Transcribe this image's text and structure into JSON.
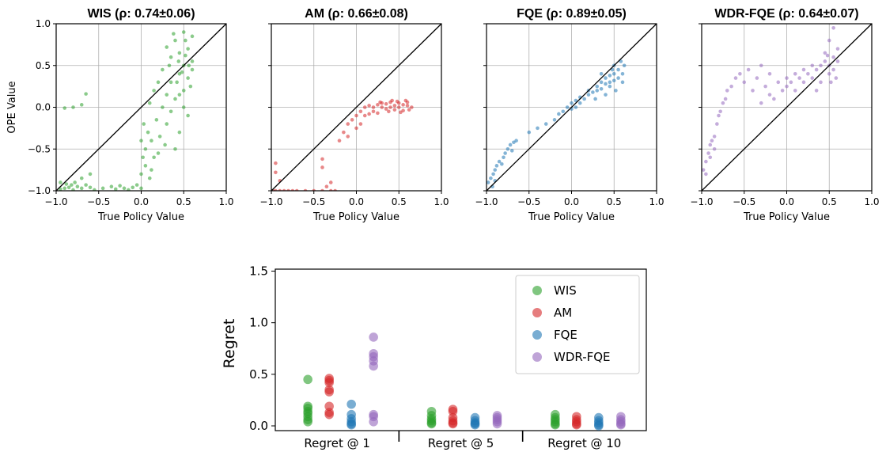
{
  "chart_data": [
    {
      "type": "scatter",
      "title": "WIS (ρ: 0.74±0.06)",
      "xlabel": "True Policy Value",
      "ylabel": "OPE Value",
      "xlim": [
        -1.0,
        1.0
      ],
      "ylim": [
        -1.0,
        1.0
      ],
      "xticks": [
        "−1.0",
        "−0.5",
        "0.0",
        "0.5",
        "1.0"
      ],
      "yticks": [
        "−1.0",
        "−0.5",
        "0.0",
        "0.5",
        "1.0"
      ],
      "grid": true,
      "color": "#2ca02c",
      "points": [
        [
          -0.95,
          -0.98
        ],
        [
          -0.9,
          -0.97
        ],
        [
          -0.85,
          -0.96
        ],
        [
          -0.8,
          -0.99
        ],
        [
          -0.75,
          -0.95
        ],
        [
          -0.7,
          -0.97
        ],
        [
          -0.65,
          -0.93
        ],
        [
          -0.88,
          -0.92
        ],
        [
          -0.78,
          -0.9
        ],
        [
          -0.6,
          -0.96
        ],
        [
          -0.55,
          -0.99
        ],
        [
          -0.45,
          -0.97
        ],
        [
          -0.35,
          -0.95
        ],
        [
          -0.3,
          -0.98
        ],
        [
          -0.25,
          -0.94
        ],
        [
          -0.2,
          -0.97
        ],
        [
          -0.15,
          -0.99
        ],
        [
          -0.1,
          -0.96
        ],
        [
          -0.05,
          -0.93
        ],
        [
          0.0,
          -0.97
        ],
        [
          -0.9,
          -0.01
        ],
        [
          -0.8,
          0.0
        ],
        [
          -0.7,
          0.03
        ],
        [
          -0.65,
          0.16
        ],
        [
          -0.6,
          -0.8
        ],
        [
          -0.7,
          -0.85
        ],
        [
          -0.95,
          -0.9
        ],
        [
          -0.82,
          -0.93
        ],
        [
          0.0,
          -0.8
        ],
        [
          0.02,
          -0.6
        ],
        [
          0.0,
          -0.4
        ],
        [
          0.03,
          -0.2
        ],
        [
          0.05,
          -0.7
        ],
        [
          0.05,
          -0.5
        ],
        [
          0.08,
          -0.3
        ],
        [
          0.1,
          -0.85
        ],
        [
          0.12,
          -0.75
        ],
        [
          0.15,
          -0.6
        ],
        [
          0.2,
          -0.55
        ],
        [
          0.22,
          -0.35
        ],
        [
          0.1,
          0.05
        ],
        [
          0.15,
          0.2
        ],
        [
          0.2,
          0.3
        ],
        [
          0.25,
          0.45
        ],
        [
          0.25,
          0.0
        ],
        [
          0.3,
          0.15
        ],
        [
          0.35,
          0.3
        ],
        [
          0.3,
          -0.2
        ],
        [
          0.35,
          0.6
        ],
        [
          0.4,
          0.8
        ],
        [
          0.4,
          0.1
        ],
        [
          0.45,
          0.4
        ],
        [
          0.45,
          0.65
        ],
        [
          0.5,
          0.9
        ],
        [
          0.5,
          0.5
        ],
        [
          0.5,
          0.2
        ],
        [
          0.55,
          0.35
        ],
        [
          0.55,
          0.7
        ],
        [
          0.6,
          0.55
        ],
        [
          0.6,
          0.85
        ],
        [
          0.55,
          -0.1
        ],
        [
          0.45,
          -0.3
        ],
        [
          0.4,
          -0.5
        ],
        [
          0.5,
          0.0
        ],
        [
          0.35,
          -0.05
        ],
        [
          0.42,
          0.3
        ],
        [
          0.48,
          0.42
        ],
        [
          0.52,
          0.62
        ],
        [
          0.58,
          0.25
        ],
        [
          0.6,
          0.45
        ],
        [
          0.3,
          0.72
        ],
        [
          0.38,
          0.88
        ],
        [
          0.45,
          0.15
        ],
        [
          0.52,
          0.8
        ],
        [
          0.56,
          0.5
        ],
        [
          0.33,
          0.5
        ],
        [
          0.28,
          -0.45
        ],
        [
          0.18,
          -0.15
        ],
        [
          0.12,
          -0.4
        ],
        [
          0.44,
          0.55
        ]
      ]
    },
    {
      "type": "scatter",
      "title": "AM (ρ: 0.66±0.08)",
      "xlabel": "True Policy Value",
      "xlim": [
        -1.0,
        1.0
      ],
      "ylim": [
        -1.0,
        1.0
      ],
      "xticks": [
        "−1.0",
        "−0.5",
        "0.0",
        "0.5",
        "1.0"
      ],
      "grid": true,
      "color": "#d62728",
      "points": [
        [
          -0.98,
          -1.0
        ],
        [
          -0.95,
          -1.0
        ],
        [
          -0.9,
          -1.0
        ],
        [
          -0.85,
          -1.0
        ],
        [
          -0.8,
          -1.0
        ],
        [
          -0.75,
          -1.0
        ],
        [
          -0.7,
          -1.0
        ],
        [
          -0.6,
          -1.0
        ],
        [
          -0.5,
          -1.0
        ],
        [
          -0.4,
          -1.0
        ],
        [
          -0.3,
          -1.0
        ],
        [
          -0.25,
          -1.0
        ],
        [
          -0.95,
          -0.67
        ],
        [
          -0.95,
          -0.78
        ],
        [
          -0.9,
          -0.88
        ],
        [
          -0.4,
          -0.62
        ],
        [
          -0.4,
          -0.72
        ],
        [
          -0.35,
          -0.95
        ],
        [
          -0.3,
          -0.9
        ],
        [
          -0.2,
          -0.4
        ],
        [
          -0.15,
          -0.3
        ],
        [
          -0.1,
          -0.2
        ],
        [
          -0.1,
          -0.35
        ],
        [
          -0.05,
          -0.15
        ],
        [
          0.0,
          -0.1
        ],
        [
          0.0,
          -0.25
        ],
        [
          0.05,
          -0.05
        ],
        [
          0.05,
          -0.2
        ],
        [
          0.1,
          0.0
        ],
        [
          0.1,
          -0.1
        ],
        [
          0.15,
          0.02
        ],
        [
          0.15,
          -0.08
        ],
        [
          0.2,
          0.0
        ],
        [
          0.2,
          -0.05
        ],
        [
          0.25,
          0.03
        ],
        [
          0.3,
          0.0
        ],
        [
          0.3,
          0.05
        ],
        [
          0.35,
          -0.02
        ],
        [
          0.35,
          0.04
        ],
        [
          0.4,
          0.0
        ],
        [
          0.4,
          0.06
        ],
        [
          0.45,
          0.02
        ],
        [
          0.45,
          -0.03
        ],
        [
          0.5,
          0.05
        ],
        [
          0.5,
          0.0
        ],
        [
          0.55,
          0.03
        ],
        [
          0.55,
          -0.04
        ],
        [
          0.6,
          0.02
        ],
        [
          0.6,
          0.06
        ],
        [
          0.65,
          0.0
        ],
        [
          0.25,
          -0.07
        ],
        [
          0.28,
          0.06
        ],
        [
          0.38,
          -0.05
        ],
        [
          0.42,
          0.08
        ],
        [
          0.48,
          0.07
        ],
        [
          0.52,
          -0.06
        ],
        [
          0.58,
          0.08
        ],
        [
          0.62,
          -0.03
        ]
      ]
    },
    {
      "type": "scatter",
      "title": "FQE (ρ: 0.89±0.05)",
      "xlabel": "True Policy Value",
      "xlim": [
        -1.0,
        1.0
      ],
      "ylim": [
        -1.0,
        1.0
      ],
      "xticks": [
        "−1.0",
        "−0.5",
        "0.0",
        "0.5",
        "1.0"
      ],
      "grid": true,
      "color": "#1f77b4",
      "points": [
        [
          -0.98,
          -0.9
        ],
        [
          -0.95,
          -0.85
        ],
        [
          -0.92,
          -0.8
        ],
        [
          -0.9,
          -0.75
        ],
        [
          -0.88,
          -0.7
        ],
        [
          -0.85,
          -0.65
        ],
        [
          -0.82,
          -0.68
        ],
        [
          -0.8,
          -0.6
        ],
        [
          -0.78,
          -0.55
        ],
        [
          -0.75,
          -0.5
        ],
        [
          -0.72,
          -0.45
        ],
        [
          -0.7,
          -0.52
        ],
        [
          -0.68,
          -0.42
        ],
        [
          -0.65,
          -0.4
        ],
        [
          -0.93,
          -0.95
        ],
        [
          -0.9,
          -0.88
        ],
        [
          -0.5,
          -0.3
        ],
        [
          -0.4,
          -0.25
        ],
        [
          -0.3,
          -0.2
        ],
        [
          -0.2,
          -0.15
        ],
        [
          -0.15,
          -0.08
        ],
        [
          -0.1,
          -0.05
        ],
        [
          -0.05,
          0.0
        ],
        [
          0.0,
          -0.02
        ],
        [
          0.0,
          0.05
        ],
        [
          0.05,
          0.0
        ],
        [
          0.05,
          0.08
        ],
        [
          0.1,
          0.05
        ],
        [
          0.1,
          0.12
        ],
        [
          0.15,
          0.1
        ],
        [
          0.2,
          0.15
        ],
        [
          0.2,
          0.2
        ],
        [
          0.25,
          0.18
        ],
        [
          0.3,
          0.25
        ],
        [
          0.3,
          0.2
        ],
        [
          0.35,
          0.3
        ],
        [
          0.35,
          0.22
        ],
        [
          0.4,
          0.28
        ],
        [
          0.4,
          0.35
        ],
        [
          0.45,
          0.3
        ],
        [
          0.45,
          0.38
        ],
        [
          0.5,
          0.32
        ],
        [
          0.5,
          0.4
        ],
        [
          0.55,
          0.35
        ],
        [
          0.55,
          0.45
        ],
        [
          0.6,
          0.4
        ],
        [
          0.6,
          0.3
        ],
        [
          0.62,
          0.5
        ],
        [
          0.5,
          0.5
        ],
        [
          0.45,
          0.25
        ],
        [
          0.4,
          0.15
        ],
        [
          0.58,
          0.55
        ],
        [
          0.52,
          0.2
        ],
        [
          0.48,
          0.45
        ],
        [
          0.35,
          0.4
        ],
        [
          0.28,
          0.1
        ]
      ]
    },
    {
      "type": "scatter",
      "title": "WDR-FQE (ρ: 0.64±0.07)",
      "xlabel": "True Policy Value",
      "xlim": [
        -1.0,
        1.0
      ],
      "ylim": [
        -1.0,
        1.0
      ],
      "xticks": [
        "−1.0",
        "−0.5",
        "0.0",
        "0.5",
        "1.0"
      ],
      "grid": true,
      "color": "#9467bd",
      "points": [
        [
          -0.98,
          -0.75
        ],
        [
          -0.95,
          -0.65
        ],
        [
          -0.92,
          -0.55
        ],
        [
          -0.9,
          -0.45
        ],
        [
          -0.88,
          -0.4
        ],
        [
          -0.85,
          -0.35
        ],
        [
          -0.82,
          -0.2
        ],
        [
          -0.8,
          -0.1
        ],
        [
          -0.78,
          -0.05
        ],
        [
          -0.75,
          0.05
        ],
        [
          -0.72,
          0.1
        ],
        [
          -0.7,
          0.2
        ],
        [
          -0.65,
          0.25
        ],
        [
          -0.6,
          0.35
        ],
        [
          -0.55,
          0.4
        ],
        [
          -0.5,
          0.3
        ],
        [
          -0.45,
          0.45
        ],
        [
          -0.4,
          0.2
        ],
        [
          -0.35,
          0.35
        ],
        [
          -0.3,
          0.5
        ],
        [
          -0.25,
          0.25
        ],
        [
          -0.2,
          0.4
        ],
        [
          -0.15,
          0.1
        ],
        [
          -0.1,
          0.3
        ],
        [
          -0.05,
          0.2
        ],
        [
          0.0,
          0.25
        ],
        [
          0.0,
          0.35
        ],
        [
          0.05,
          0.3
        ],
        [
          0.1,
          0.2
        ],
        [
          0.1,
          0.4
        ],
        [
          0.15,
          0.35
        ],
        [
          0.2,
          0.3
        ],
        [
          0.2,
          0.45
        ],
        [
          0.25,
          0.4
        ],
        [
          0.3,
          0.5
        ],
        [
          0.3,
          0.35
        ],
        [
          0.35,
          0.45
        ],
        [
          0.4,
          0.5
        ],
        [
          0.4,
          0.3
        ],
        [
          0.45,
          0.55
        ],
        [
          0.5,
          0.5
        ],
        [
          0.5,
          0.4
        ],
        [
          0.55,
          0.6
        ],
        [
          0.55,
          0.45
        ],
        [
          0.6,
          0.55
        ],
        [
          0.6,
          0.7
        ],
        [
          0.5,
          0.8
        ],
        [
          0.55,
          0.95
        ],
        [
          0.45,
          0.65
        ],
        [
          0.35,
          0.2
        ],
        [
          -0.95,
          -0.8
        ],
        [
          -0.9,
          -0.6
        ],
        [
          -0.85,
          -0.5
        ],
        [
          -0.3,
          0.05
        ],
        [
          -0.2,
          0.15
        ],
        [
          0.58,
          0.35
        ],
        [
          0.48,
          0.62
        ],
        [
          0.52,
          0.3
        ]
      ]
    },
    {
      "type": "strip",
      "ylabel": "Regret",
      "ylim": [
        0.0,
        1.55
      ],
      "yticks": [
        "0.0",
        "0.5",
        "1.0",
        "1.5"
      ],
      "ytick_values": [
        0.0,
        0.5,
        1.0,
        1.5
      ],
      "categories": [
        "Regret @ 1",
        "Regret @ 5",
        "Regret @ 10"
      ],
      "legend_position": "top-right",
      "series": [
        {
          "name": "WIS",
          "color": "#2ca02c",
          "values": [
            [
              0.45,
              0.19,
              0.17,
              0.14,
              0.12,
              0.09,
              0.06,
              0.04
            ],
            [
              0.14,
              0.1,
              0.07,
              0.05,
              0.03,
              0.02
            ],
            [
              0.11,
              0.08,
              0.06,
              0.04,
              0.02,
              0.01
            ]
          ]
        },
        {
          "name": "AM",
          "color": "#d62728",
          "values": [
            [
              0.46,
              0.44,
              0.42,
              0.35,
              0.33,
              0.19,
              0.13,
              0.11
            ],
            [
              0.16,
              0.14,
              0.08,
              0.05,
              0.03,
              0.02
            ],
            [
              0.09,
              0.06,
              0.04,
              0.02,
              0.01
            ]
          ]
        },
        {
          "name": "FQE",
          "color": "#1f77b4",
          "values": [
            [
              0.21,
              0.11,
              0.07,
              0.04,
              0.02,
              0.01
            ],
            [
              0.08,
              0.05,
              0.03,
              0.02,
              0.01
            ],
            [
              0.08,
              0.05,
              0.03,
              0.01,
              0.0
            ]
          ]
        },
        {
          "name": "WDR-FQE",
          "color": "#9467bd",
          "values": [
            [
              0.86,
              0.7,
              0.67,
              0.63,
              0.58,
              0.11,
              0.09,
              0.04
            ],
            [
              0.1,
              0.08,
              0.06,
              0.04,
              0.02
            ],
            [
              0.09,
              0.06,
              0.04,
              0.02,
              0.01
            ]
          ]
        }
      ]
    }
  ]
}
